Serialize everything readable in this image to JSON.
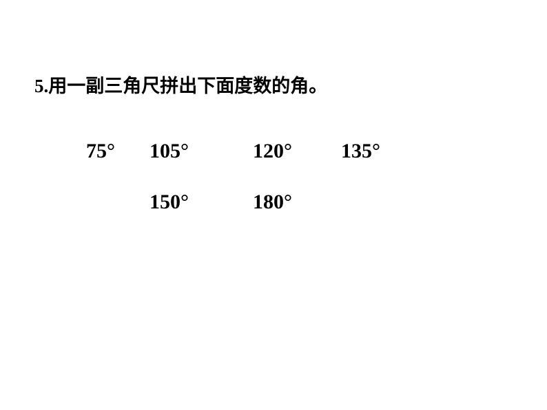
{
  "question": {
    "number": "5.",
    "text": "用一副三角尺拼出下面度数的角。"
  },
  "angles": {
    "row1": {
      "item1": "75°",
      "item2": "105°",
      "item3": "120°",
      "item4": "135°"
    },
    "row2": {
      "item1": "150°",
      "item2": "180°"
    }
  },
  "styling": {
    "background_color": "#ffffff",
    "text_color": "#000000",
    "question_fontsize": 27,
    "angle_fontsize": 30,
    "font_weight": "bold",
    "question_font": "SimSun",
    "angle_font": "Times New Roman"
  }
}
